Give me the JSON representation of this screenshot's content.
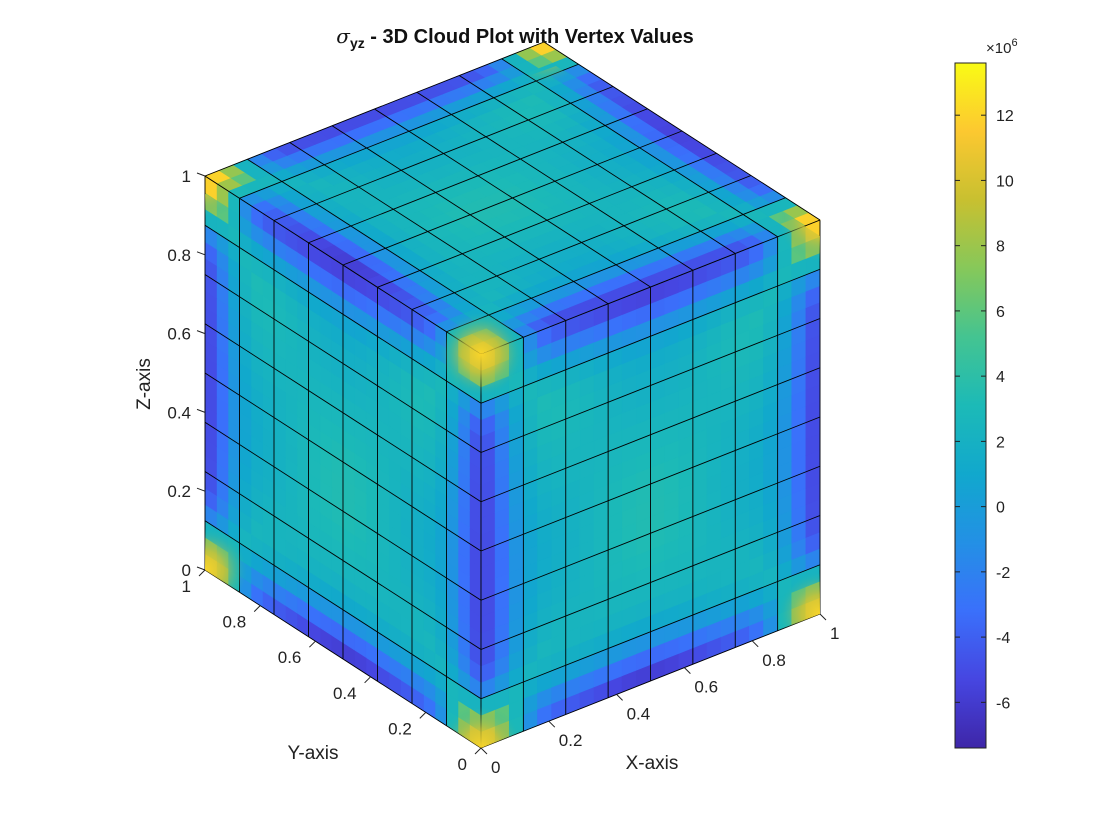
{
  "chart_data": {
    "type": "3d-surface",
    "title": {
      "symbol": "σ",
      "subscript": "yz",
      "text": " - 3D Cloud Plot with Vertex Values"
    },
    "xlabel": "X-axis",
    "ylabel": "Y-axis",
    "zlabel": "Z-axis",
    "xlim": [
      0,
      1
    ],
    "ylim": [
      0,
      1
    ],
    "zlim": [
      0,
      1
    ],
    "xticks": [
      "0",
      "0.2",
      "0.4",
      "0.6",
      "0.8",
      "1"
    ],
    "yticks": [
      "0",
      "0.2",
      "0.4",
      "0.6",
      "0.8",
      "1"
    ],
    "zticks": [
      "0",
      "0.2",
      "0.4",
      "0.6",
      "0.8",
      "1"
    ],
    "grid_divisions": 8,
    "colormap": "parula",
    "colorbar": {
      "exponent_label": "×10",
      "exponent_power": "6",
      "range": [
        -7.4,
        13.6
      ],
      "ticks": [
        "12",
        "10",
        "8",
        "6",
        "4",
        "2",
        "0",
        "-2",
        "-4",
        "-6"
      ],
      "tick_values": [
        12,
        10,
        8,
        6,
        4,
        2,
        0,
        -2,
        -4,
        -6
      ]
    },
    "corner_value": 13,
    "edge_mid_value": -6.5,
    "face_center_value": 2.5
  },
  "colors": {
    "parula_low": "#3e26a8",
    "parula_mid": "#1fbfb8",
    "parula_high": "#f9fb15",
    "grid_line": "#000000"
  }
}
